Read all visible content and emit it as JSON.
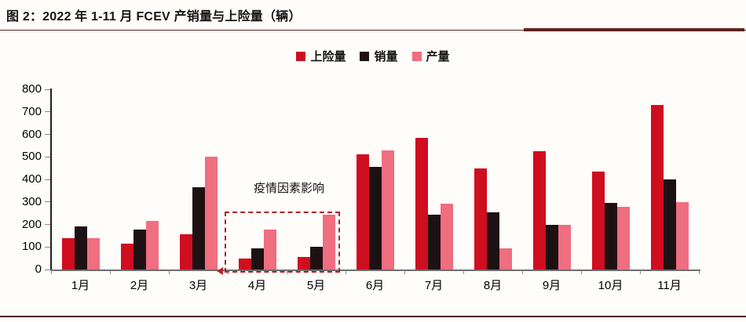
{
  "header": {
    "title": "图 2：2022 年 1-11 月 FCEV 产销量与上险量（辆）"
  },
  "legend": [
    {
      "label": "上险量",
      "color": "#cf0e1f"
    },
    {
      "label": "销量",
      "color": "#1e1114"
    },
    {
      "label": "产量",
      "color": "#ef6e80"
    }
  ],
  "colors": {
    "insured_red": "#cf0e1f",
    "sales_black": "#1e1114",
    "production_pink": "#ef6e80",
    "dashed_box_red": "#b3202c",
    "divider_maroon": "#5c2320"
  },
  "chart_data": {
    "type": "bar",
    "title": "图 2：2022 年 1-11 月 FCEV 产销量与上险量（辆）",
    "categories": [
      "1月",
      "2月",
      "3月",
      "4月",
      "5月",
      "6月",
      "7月",
      "8月",
      "9月",
      "10月",
      "11月"
    ],
    "series": [
      {
        "name": "上险量",
        "color": "#cf0e1f",
        "values": [
          140,
          115,
          157,
          50,
          57,
          510,
          585,
          447,
          525,
          434,
          731
        ]
      },
      {
        "name": "销量",
        "color": "#1e1114",
        "values": [
          192,
          178,
          366,
          93,
          101,
          454,
          245,
          254,
          197,
          297,
          400
        ]
      },
      {
        "name": "产量",
        "color": "#ef6e80",
        "values": [
          140,
          215,
          500,
          177,
          245,
          527,
          293,
          95,
          200,
          277,
          298
        ]
      }
    ],
    "xlabel": "",
    "ylabel": "",
    "ylim": [
      0,
      800
    ],
    "yticks": [
      0,
      100,
      200,
      300,
      400,
      500,
      600,
      700,
      800
    ],
    "grid": false,
    "legend_position": "top-center",
    "annotation": "疫情因素影响",
    "annotation_months": [
      "4月",
      "5月"
    ]
  }
}
